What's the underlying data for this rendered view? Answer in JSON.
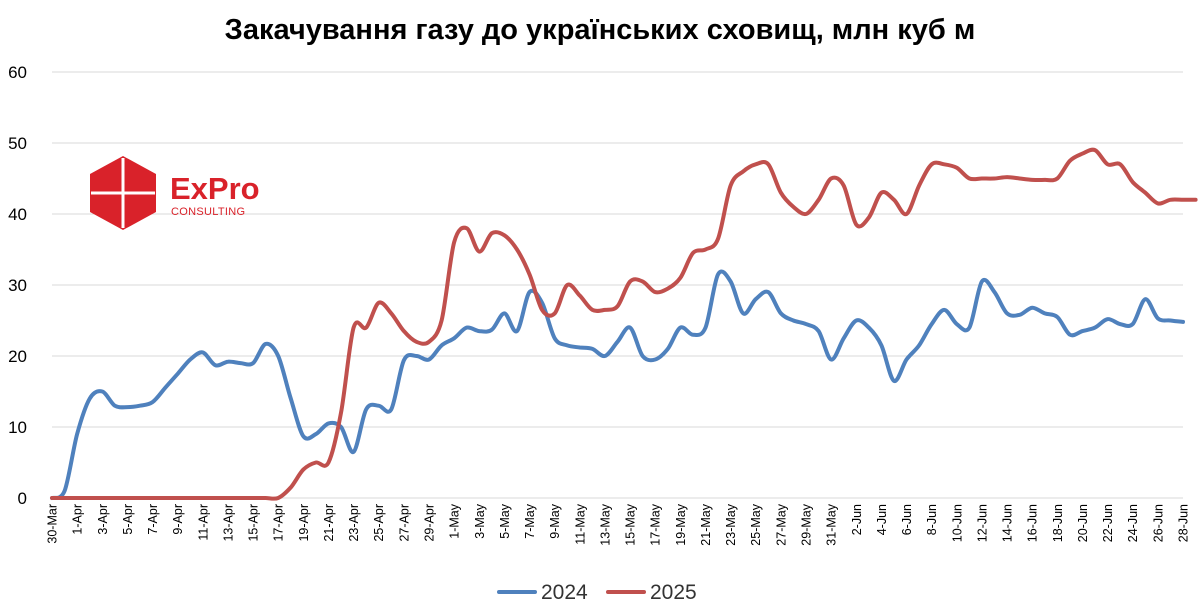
{
  "chart_data": {
    "type": "line",
    "title": "Закачування газу до українських сховищ, млн куб м",
    "xlabel": "",
    "ylabel": "",
    "ylim": [
      0,
      60
    ],
    "yticks": [
      "0",
      "10",
      "20",
      "30",
      "40",
      "50",
      "60"
    ],
    "grid": true,
    "legend_position": "bottom",
    "x_start": "30-Mar",
    "x_end": "28-Jun",
    "x_ticks": [
      "30-Mar",
      "1-Apr",
      "3-Apr",
      "5-Apr",
      "7-Apr",
      "9-Apr",
      "11-Apr",
      "13-Apr",
      "15-Apr",
      "17-Apr",
      "19-Apr",
      "21-Apr",
      "23-Apr",
      "25-Apr",
      "27-Apr",
      "29-Apr",
      "1-May",
      "3-May",
      "5-May",
      "7-May",
      "9-May",
      "11-May",
      "13-May",
      "15-May",
      "17-May",
      "19-May",
      "21-May",
      "23-May",
      "25-May",
      "27-May",
      "29-May",
      "31-May",
      "2-Jun",
      "4-Jun",
      "6-Jun",
      "8-Jun",
      "10-Jun",
      "12-Jun",
      "14-Jun",
      "16-Jun",
      "18-Jun",
      "20-Jun",
      "22-Jun",
      "24-Jun",
      "26-Jun",
      "28-Jun"
    ],
    "series": [
      {
        "name": "2024",
        "color": "#4f81bd",
        "values": [
          0,
          1,
          9,
          14,
          15,
          13,
          12.8,
          13,
          13.5,
          15.5,
          17.5,
          19.5,
          20.5,
          18.7,
          19.2,
          19,
          19,
          21.7,
          20,
          14,
          8.7,
          9,
          10.5,
          10,
          6.5,
          12.5,
          13,
          12.5,
          19.4,
          20,
          19.5,
          21.5,
          22.5,
          24,
          23.5,
          23.7,
          26,
          23.5,
          29,
          27.5,
          22.5,
          21.5,
          21.2,
          21,
          20,
          22,
          24,
          20,
          19.5,
          21,
          24,
          23,
          24,
          31.5,
          30.5,
          26,
          28,
          29,
          26,
          25,
          24.5,
          23.5,
          19.5,
          22.5,
          25,
          24,
          21.5,
          16.5,
          19.5,
          21.5,
          24.5,
          26.5,
          24.5,
          24,
          30.5,
          29,
          26,
          25.8,
          26.8,
          26,
          25.5,
          23,
          23.5,
          24,
          25.2,
          24.5,
          24.5,
          28,
          25.3,
          25,
          24.8
        ]
      },
      {
        "name": "2025",
        "color": "#c0504d",
        "values": [
          0,
          0,
          0,
          0,
          0,
          0,
          0,
          0,
          0,
          0,
          0,
          0,
          0,
          0,
          0,
          0,
          0,
          0,
          0,
          1.5,
          4,
          5,
          5,
          12,
          24,
          24,
          27.5,
          26,
          23.5,
          22,
          22,
          25,
          36,
          38,
          34.7,
          37.3,
          37,
          35,
          31.5,
          26.5,
          26,
          30,
          28.5,
          26.5,
          26.5,
          27,
          30.5,
          30.5,
          29,
          29.5,
          31,
          34.5,
          35,
          36.5,
          44,
          46,
          47,
          47,
          43,
          41,
          40,
          42,
          45,
          44,
          38.5,
          39.5,
          43,
          42,
          40,
          44,
          47,
          47,
          46.5,
          45,
          45,
          45,
          45.2,
          45,
          44.8,
          44.8,
          45,
          47.5,
          48.5,
          49,
          47,
          47,
          44.5,
          43,
          41.5,
          42,
          42,
          42
        ]
      }
    ]
  },
  "logo": {
    "word": "ExPro",
    "sub": "CONSULTING",
    "color": "#d9222a"
  }
}
